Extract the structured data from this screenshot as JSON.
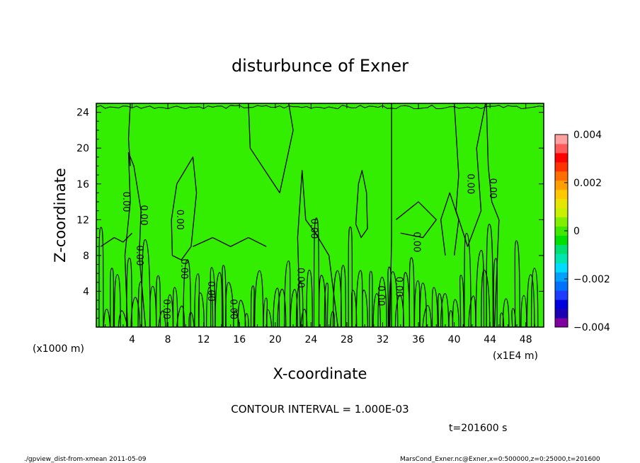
{
  "chart_data": {
    "type": "heatmap",
    "title": "disturbunce of Exner",
    "xlabel": "X-coordinate",
    "ylabel": "Z-coordinate",
    "x_unit": "(x1E4 m)",
    "y_unit": "(x1000 m)",
    "xlim": [
      0,
      50
    ],
    "ylim": [
      0,
      25
    ],
    "x_ticks": [
      "4",
      "8",
      "12",
      "16",
      "20",
      "24",
      "28",
      "32",
      "36",
      "40",
      "44",
      "48"
    ],
    "y_ticks": [
      "4",
      "8",
      "12",
      "16",
      "20",
      "24"
    ],
    "colorbar": {
      "min": -0.004,
      "max": 0.004,
      "tick_labels": [
        "0.004",
        "0.002",
        "0",
        "−0.002",
        "−0.004"
      ],
      "colors": [
        "#8000a0",
        "#1e00b4",
        "#0000dc",
        "#1e3cff",
        "#0070ff",
        "#00a0ff",
        "#00dcff",
        "#00e6b0",
        "#00e070",
        "#00e000",
        "#40e800",
        "#80f000",
        "#c8f000",
        "#e6e600",
        "#ffc800",
        "#ffa000",
        "#ff6e00",
        "#ff3200",
        "#ff0000",
        "#ff5a5a",
        "#ffa0a0"
      ]
    },
    "field_color": "#33ee00",
    "contour_interval": "CONTOUR INTERVAL = 1.000E-03",
    "contour_labels": [
      {
        "text": "0.00",
        "x": 3,
        "y": 14
      },
      {
        "text": "0.00",
        "x": 5,
        "y": 12.5
      },
      {
        "text": "0.00",
        "x": 4.5,
        "y": 8
      },
      {
        "text": "0.00",
        "x": 7.5,
        "y": 2
      },
      {
        "text": "0.00",
        "x": 9,
        "y": 12
      },
      {
        "text": "0.00",
        "x": 9.5,
        "y": 6.5
      },
      {
        "text": "0.00",
        "x": 12.5,
        "y": 4
      },
      {
        "text": "0.00",
        "x": 15,
        "y": 2
      },
      {
        "text": "0.00",
        "x": 22.5,
        "y": 5.5
      },
      {
        "text": "0.00",
        "x": 24,
        "y": 11
      },
      {
        "text": "0.00",
        "x": 31.5,
        "y": 3.5
      },
      {
        "text": "0.00",
        "x": 33.5,
        "y": 4.5
      },
      {
        "text": "0.00",
        "x": 35.5,
        "y": 9.5
      },
      {
        "text": "0.00",
        "x": 41.5,
        "y": 16
      },
      {
        "text": "0.00",
        "x": 44,
        "y": 15.5
      }
    ]
  },
  "annotations": {
    "time": "t=201600 s",
    "footer_left": "./gpview_dist-from-xmean  2011-05-09",
    "footer_right": "MarsCond_Exner.nc@Exner,x=0:500000,z=0:25000,t=201600"
  }
}
